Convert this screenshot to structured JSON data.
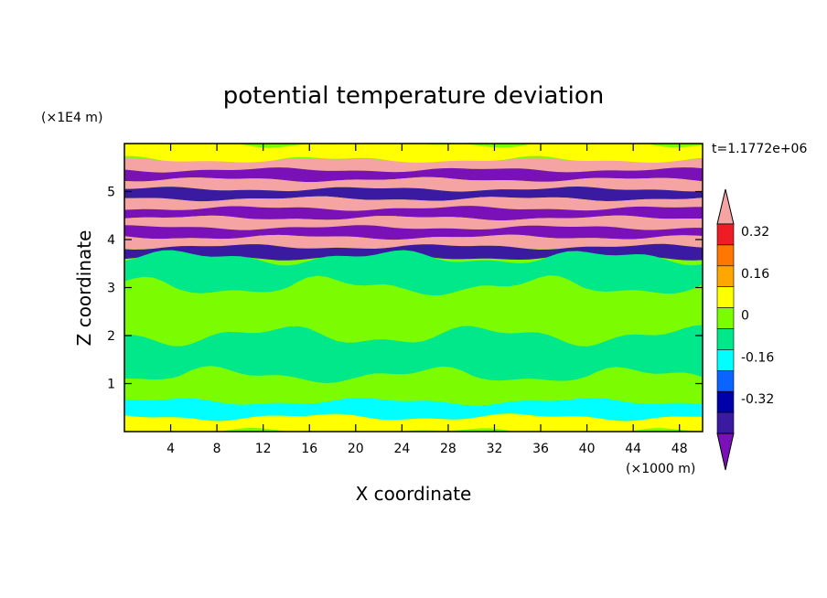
{
  "chart_data": {
    "type": "heatmap",
    "title": "potential temperature deviation",
    "xlabel": "X coordinate",
    "ylabel": "Z coordinate",
    "x_unit": "(×1000 m)",
    "y_unit": "(×1E4 m)",
    "time_label": "t=1.1772e+06",
    "xlim": [
      0,
      50
    ],
    "ylim": [
      0,
      6
    ],
    "x_ticks": [
      "4",
      "8",
      "12",
      "16",
      "20",
      "24",
      "28",
      "32",
      "36",
      "40",
      "44",
      "48"
    ],
    "x_tick_values": [
      4,
      8,
      12,
      16,
      20,
      24,
      28,
      32,
      36,
      40,
      44,
      48
    ],
    "y_ticks": [
      "1",
      "2",
      "3",
      "4",
      "5"
    ],
    "y_tick_values": [
      1,
      2,
      3,
      4,
      5
    ],
    "colorbar": {
      "labels": [
        "0.32",
        "0.16",
        "0",
        "-0.16",
        "-0.32"
      ],
      "label_values": [
        0.32,
        0.16,
        0,
        -0.16,
        -0.32
      ],
      "levels": [
        {
          "value": 0.4,
          "color": "#f5a3a3"
        },
        {
          "value": 0.32,
          "color": "#ee1c24"
        },
        {
          "value": 0.24,
          "color": "#ff7700"
        },
        {
          "value": 0.16,
          "color": "#ffa600"
        },
        {
          "value": 0.08,
          "color": "#ffff00"
        },
        {
          "value": 0.0,
          "color": "#7cfc00"
        },
        {
          "value": -0.08,
          "color": "#00e88a"
        },
        {
          "value": -0.16,
          "color": "#00ffff"
        },
        {
          "value": -0.24,
          "color": "#0a64ff"
        },
        {
          "value": -0.32,
          "color": "#0000a8"
        },
        {
          "value": -0.4,
          "color": "#3a1aa0"
        },
        {
          "value": -0.48,
          "color": "#7a10b8"
        }
      ]
    },
    "bands": [
      {
        "z": 5.75,
        "value": 0.08
      },
      {
        "z": 5.55,
        "value": 0.4
      },
      {
        "z": 5.35,
        "value": -0.48
      },
      {
        "z": 5.15,
        "value": 0.4
      },
      {
        "z": 4.95,
        "value": -0.4
      },
      {
        "z": 4.75,
        "value": 0.4
      },
      {
        "z": 4.55,
        "value": -0.48
      },
      {
        "z": 4.35,
        "value": 0.4
      },
      {
        "z": 4.15,
        "value": -0.48
      },
      {
        "z": 3.95,
        "value": 0.4
      },
      {
        "z": 3.75,
        "value": -0.4
      },
      {
        "z": 3.5,
        "value": -0.08
      },
      {
        "z": 2.5,
        "value": 0.0
      },
      {
        "z": 1.5,
        "value": -0.08
      },
      {
        "z": 0.8,
        "value": 0.0
      },
      {
        "z": 0.45,
        "value": -0.16
      },
      {
        "z": 0.15,
        "value": 0.08
      }
    ]
  }
}
